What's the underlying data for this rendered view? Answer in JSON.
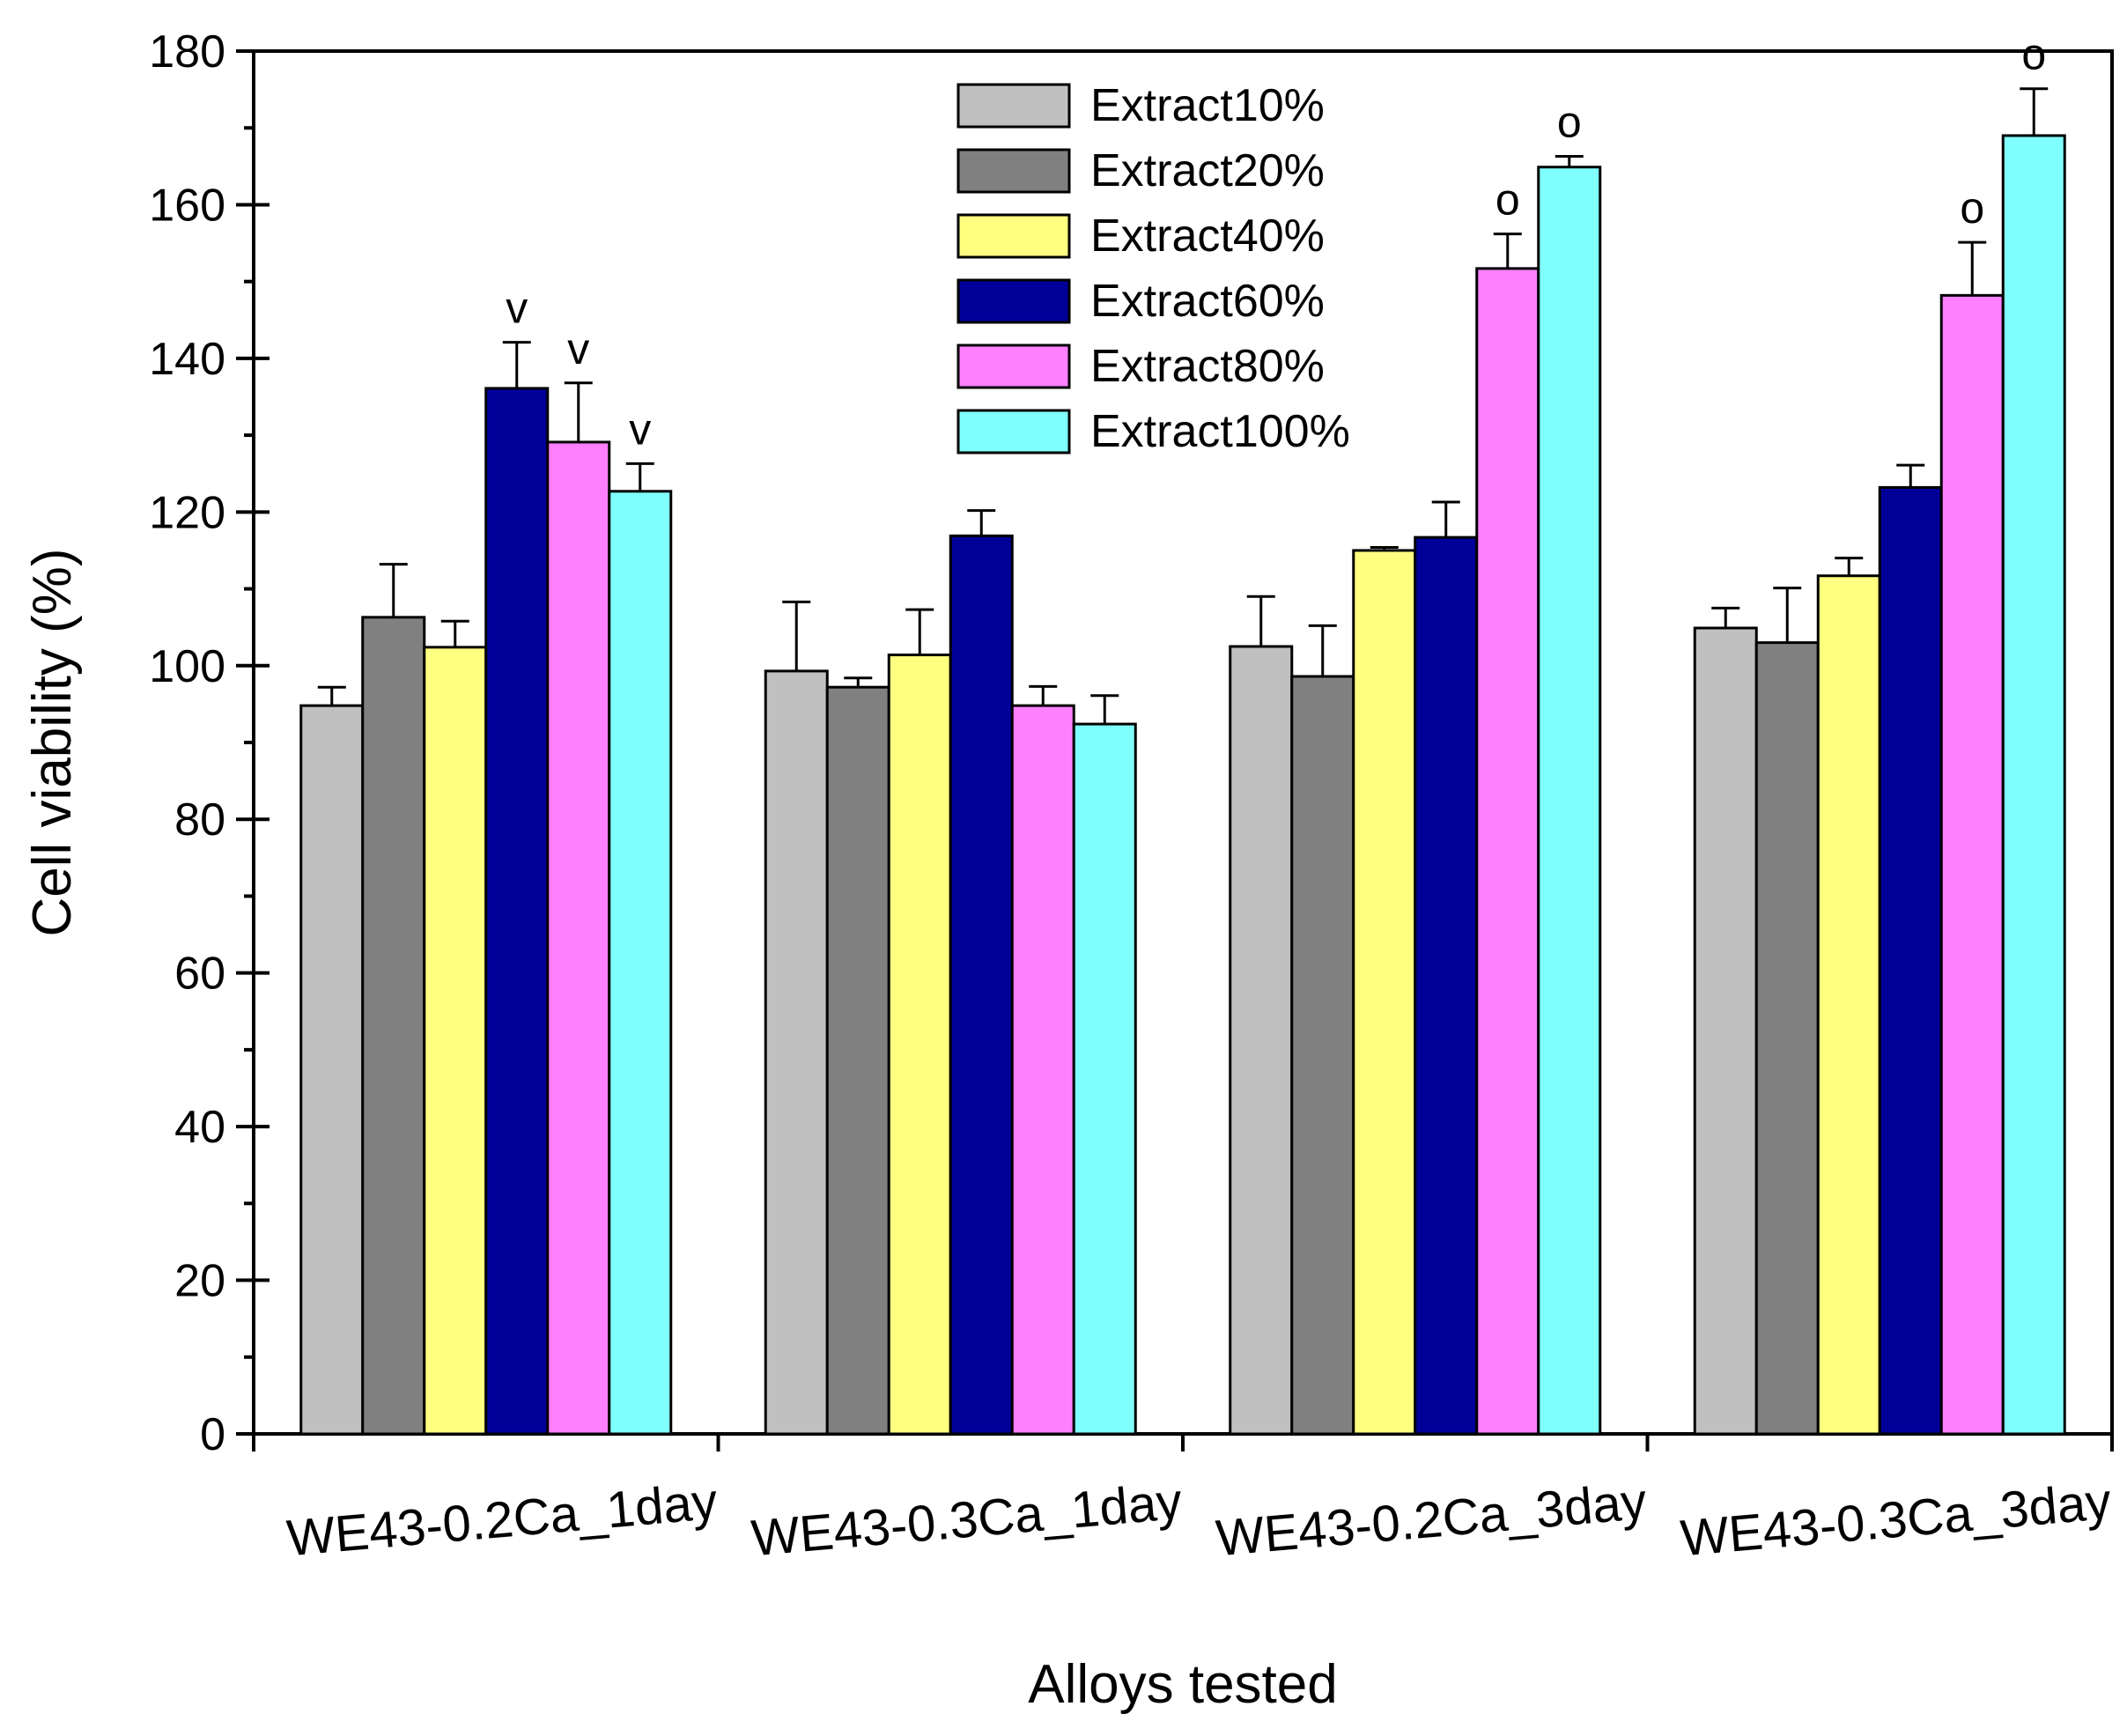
{
  "chart_data": {
    "type": "bar",
    "title": "",
    "xlabel": "Alloys tested",
    "ylabel": "Cell viability (%)",
    "ylim": [
      0,
      180
    ],
    "yticks": [
      0,
      20,
      40,
      60,
      80,
      100,
      120,
      140,
      160,
      180
    ],
    "categories": [
      "WE43-0.2Ca_1day",
      "WE43-0.3Ca_1day",
      "WE43-0.2Ca_3day",
      "WE43-0.3Ca_3day"
    ],
    "legend_position": "top-center",
    "series": [
      {
        "name": "Extract10%",
        "color": "#c0c0c0",
        "values": [
          94.8,
          99.3,
          102.5,
          104.9
        ],
        "errors": [
          2.4,
          9.0,
          6.5,
          2.6
        ],
        "marks": [
          "",
          "",
          "",
          ""
        ]
      },
      {
        "name": "Extract20%",
        "color": "#808080",
        "values": [
          106.3,
          97.2,
          98.6,
          103.0
        ],
        "errors": [
          6.9,
          1.2,
          6.6,
          7.1
        ],
        "marks": [
          "",
          "",
          "",
          ""
        ]
      },
      {
        "name": "Extract40%",
        "color": "#ffff80",
        "values": [
          102.4,
          101.4,
          115.0,
          111.7
        ],
        "errors": [
          3.4,
          5.9,
          0.4,
          2.3
        ],
        "marks": [
          "",
          "",
          "",
          ""
        ]
      },
      {
        "name": "Extract60%",
        "color": "#000099",
        "values": [
          136.1,
          116.9,
          116.7,
          123.2
        ],
        "errors": [
          6.0,
          3.3,
          4.6,
          2.9
        ],
        "marks": [
          "v",
          "",
          "",
          ""
        ]
      },
      {
        "name": "Extract80%",
        "color": "#ff80ff",
        "values": [
          129.1,
          94.8,
          151.7,
          148.2
        ],
        "errors": [
          7.7,
          2.5,
          4.5,
          6.9
        ],
        "marks": [
          "v",
          "",
          "o",
          "o"
        ]
      },
      {
        "name": "Extract100%",
        "color": "#80ffff",
        "values": [
          122.7,
          92.4,
          164.9,
          169.0
        ],
        "errors": [
          3.6,
          3.7,
          1.4,
          6.1
        ],
        "marks": [
          "v",
          "",
          "o",
          "o"
        ]
      }
    ]
  }
}
